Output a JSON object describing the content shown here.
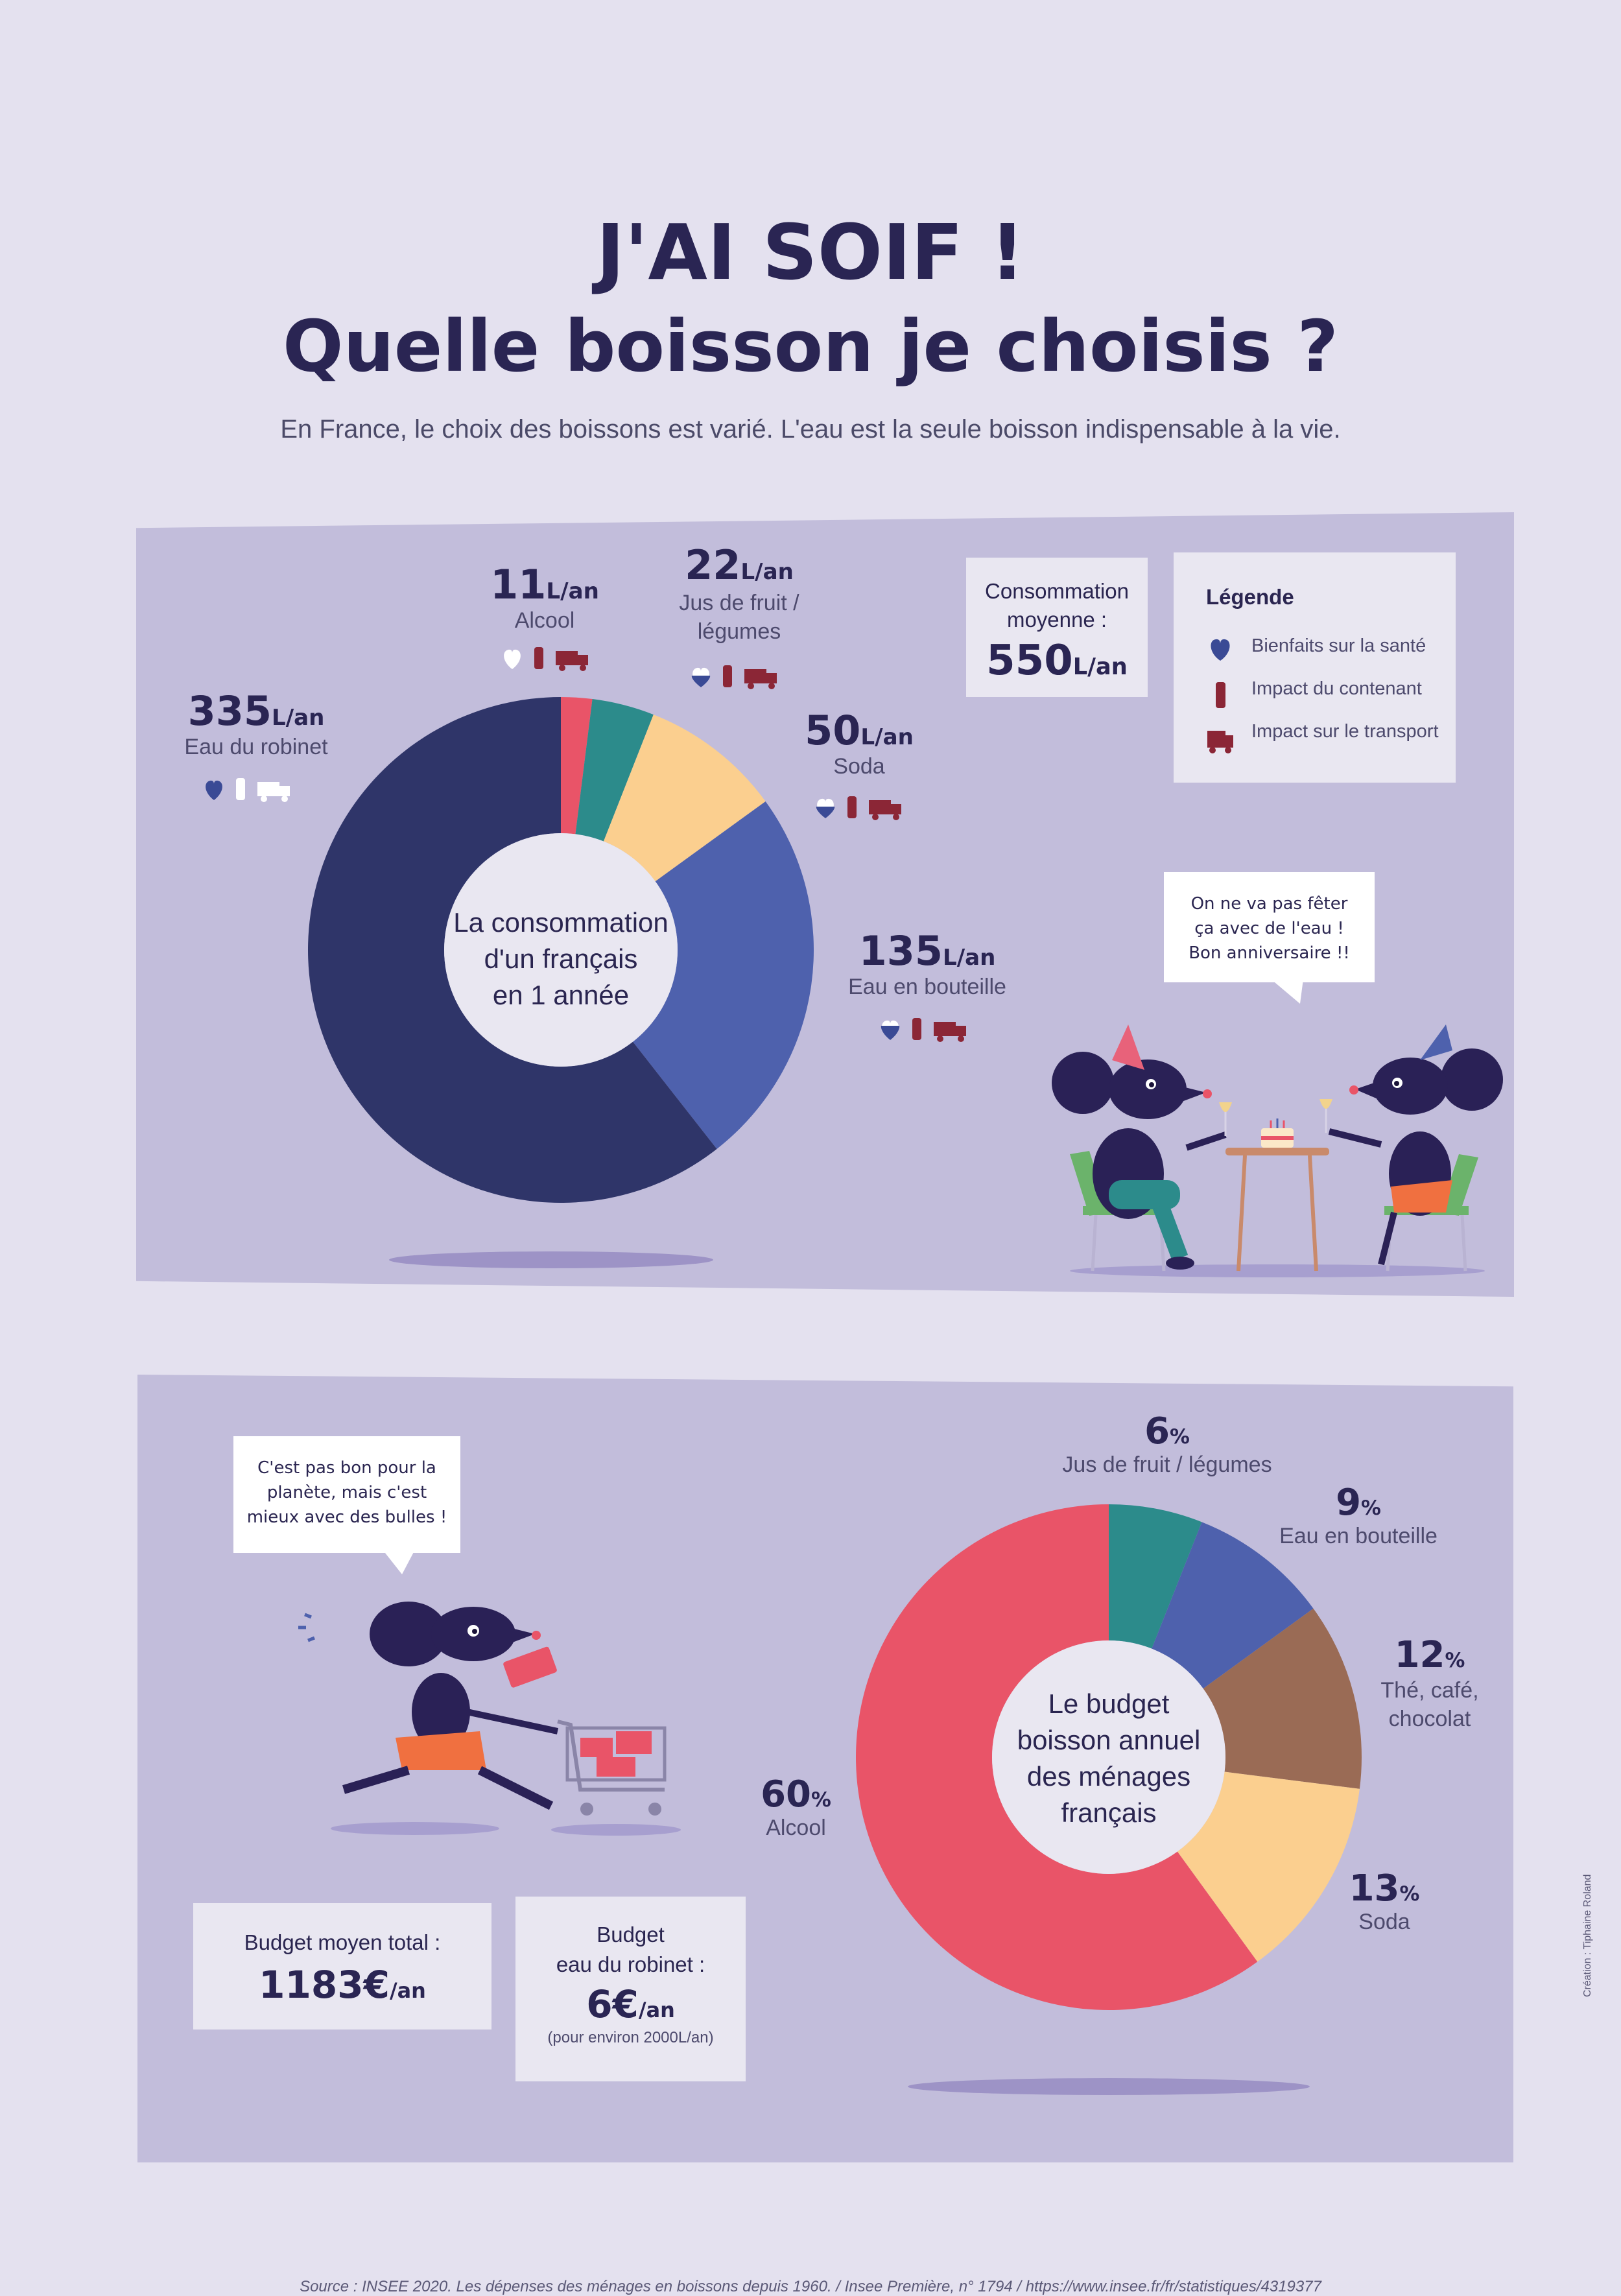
{
  "title": {
    "line1": "J'AI SOIF !",
    "line2": "Quelle boisson je choisis ?"
  },
  "subtitle": "En France, le choix des boissons est varié. L'eau est la seule boisson indispensable à la vie.",
  "colors": {
    "tap": "#2f3569",
    "bottle": "#4e61ad",
    "soda": "#fbcf8f",
    "juice": "#2c8b8b",
    "alcohol": "#e95468",
    "tea": "#9a6b55",
    "panel": "#c2bddb",
    "background": "#e4e1ef"
  },
  "consumption": {
    "center_label": [
      "La consommation",
      "d'un français",
      "en 1 année"
    ],
    "average": {
      "label": [
        "Consommation",
        "moyenne :"
      ],
      "value": "550",
      "unit": "L/an"
    },
    "legend": {
      "title": "Légende",
      "items": [
        "Bienfaits sur la santé",
        "Impact du contenant",
        "Impact sur le transport"
      ]
    },
    "items": [
      {
        "value": "335",
        "unit": "L/an",
        "label": "Eau du robinet"
      },
      {
        "value": "135",
        "unit": "L/an",
        "label": "Eau en bouteille"
      },
      {
        "value": "50",
        "unit": "L/an",
        "label": "Soda"
      },
      {
        "value": "22",
        "unit": "L/an",
        "label": "Jus de fruit / légumes"
      },
      {
        "value": "11",
        "unit": "L/an",
        "label": "Alcool"
      }
    ],
    "bubble": [
      "On ne va pas fêter",
      "ça avec de l'eau !",
      "Bon anniversaire !!"
    ]
  },
  "budget": {
    "center_label": [
      "Le budget",
      "boisson annuel",
      "des ménages",
      "français"
    ],
    "items": [
      {
        "value": "60",
        "unit": "%",
        "label": "Alcool"
      },
      {
        "value": "6",
        "unit": "%",
        "label": "Jus de fruit / légumes"
      },
      {
        "value": "9",
        "unit": "%",
        "label": "Eau en bouteille"
      },
      {
        "value": "12",
        "unit": "%",
        "label": "Thé, café, chocolat"
      },
      {
        "value": "13",
        "unit": "%",
        "label": "Soda"
      }
    ],
    "total": {
      "label": "Budget moyen total :",
      "value": "1183€",
      "unit": "/an"
    },
    "tap": {
      "label": [
        "Budget",
        "eau du robinet :"
      ],
      "value": "6€",
      "unit": "/an",
      "note": "(pour environ 2000L/an)"
    },
    "bubble": [
      "C'est pas bon pour la",
      "planète, mais c'est",
      "mieux avec des bulles !"
    ]
  },
  "source": "Source : INSEE 2020. Les dépenses des ménages en boissons depuis 1960. / Insee Première, n° 1794 / https://www.insee.fr/fr/statistiques/4319377",
  "credit": "Création : Tiphaine Roland",
  "chart_data": [
    {
      "type": "pie",
      "title": "La consommation d'un français en 1 année",
      "unit": "L/an",
      "categories": [
        "Alcool",
        "Jus de fruit / légumes",
        "Soda",
        "Eau en bouteille",
        "Eau du robinet"
      ],
      "values": [
        11,
        22,
        50,
        135,
        335
      ],
      "colors": [
        "#e95468",
        "#2c8b8b",
        "#fbcf8f",
        "#4e61ad",
        "#2f3569"
      ]
    },
    {
      "type": "pie",
      "title": "Le budget boisson annuel des ménages français",
      "unit": "%",
      "categories": [
        "Jus de fruit / légumes",
        "Eau en bouteille",
        "Thé, café, chocolat",
        "Soda",
        "Alcool"
      ],
      "values": [
        6,
        9,
        12,
        13,
        60
      ],
      "colors": [
        "#2c8b8b",
        "#4e61ad",
        "#9a6b55",
        "#fbcf8f",
        "#e95468"
      ]
    }
  ]
}
